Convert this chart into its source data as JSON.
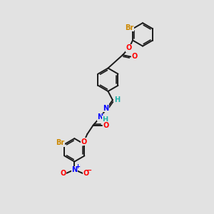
{
  "bg_color": "#e2e2e2",
  "bond_color": "#1a1a1a",
  "bond_width": 1.4,
  "figsize": [
    3.0,
    3.0
  ],
  "dpi": 100,
  "colors": {
    "C": "#1a1a1a",
    "H": "#20b2aa",
    "N": "#0000ff",
    "O": "#ff0000",
    "Br": "#cc8800"
  },
  "font_size": 7.0,
  "atom_bg": "#e2e2e2",
  "ring_r": 0.55
}
